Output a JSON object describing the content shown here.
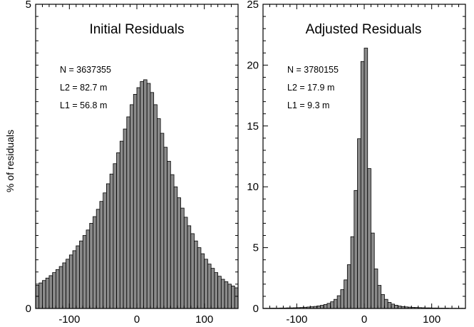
{
  "figure": {
    "ylabel": "% of residuals"
  },
  "chart_data": [
    {
      "type": "bar",
      "title": "Initial Residuals",
      "xlabel": "",
      "ylabel": "% of residuals",
      "xlim": [
        -150,
        150
      ],
      "ylim": [
        0,
        5
      ],
      "bin_width": 5,
      "x_ticks": [
        -100,
        0,
        100
      ],
      "x_tick_labels": [
        "-100",
        "0",
        "100"
      ],
      "y_ticks": [
        0,
        5
      ],
      "y_tick_labels": [
        "0",
        "5"
      ],
      "stats": [
        "N = 3637355",
        "L2 = 82.7 m",
        "L1 = 56.8 m"
      ],
      "bins_start": [
        -150,
        -145,
        -140,
        -135,
        -130,
        -125,
        -120,
        -115,
        -110,
        -105,
        -100,
        -95,
        -90,
        -85,
        -80,
        -75,
        -70,
        -65,
        -60,
        -55,
        -50,
        -45,
        -40,
        -35,
        -30,
        -25,
        -20,
        -15,
        -10,
        -5,
        0,
        5,
        10,
        15,
        20,
        25,
        30,
        35,
        40,
        45,
        50,
        55,
        60,
        65,
        70,
        75,
        80,
        85,
        90,
        95,
        100,
        105,
        110,
        115,
        120,
        125,
        130,
        135,
        140,
        145
      ],
      "values": [
        0.38,
        0.42,
        0.46,
        0.5,
        0.54,
        0.59,
        0.64,
        0.69,
        0.75,
        0.81,
        0.88,
        0.95,
        1.03,
        1.11,
        1.2,
        1.29,
        1.4,
        1.51,
        1.63,
        1.76,
        1.9,
        2.05,
        2.21,
        2.38,
        2.56,
        2.75,
        2.95,
        3.15,
        3.35,
        3.52,
        3.63,
        3.73,
        3.76,
        3.7,
        3.55,
        3.35,
        3.12,
        2.88,
        2.65,
        2.42,
        2.2,
        2.0,
        1.82,
        1.65,
        1.5,
        1.36,
        1.23,
        1.11,
        1.0,
        0.9,
        0.81,
        0.73,
        0.66,
        0.59,
        0.53,
        0.48,
        0.44,
        0.4,
        0.37,
        0.34
      ]
    },
    {
      "type": "bar",
      "title": "Adjusted Residuals",
      "xlabel": "",
      "ylabel": "",
      "xlim": [
        -150,
        150
      ],
      "ylim": [
        0,
        25
      ],
      "bin_width": 5,
      "x_ticks": [
        -100,
        0,
        100
      ],
      "x_tick_labels": [
        "-100",
        "0",
        "100"
      ],
      "y_ticks": [
        0,
        5,
        10,
        15,
        20,
        25
      ],
      "y_tick_labels": [
        "0",
        "5",
        "10",
        "15",
        "20",
        "25"
      ],
      "stats": [
        "N = 3780155",
        "L2 = 17.9 m",
        "L1 = 9.3 m"
      ],
      "bins_start": [
        -150,
        -145,
        -140,
        -135,
        -130,
        -125,
        -120,
        -115,
        -110,
        -105,
        -100,
        -95,
        -90,
        -85,
        -80,
        -75,
        -70,
        -65,
        -60,
        -55,
        -50,
        -45,
        -40,
        -35,
        -30,
        -25,
        -20,
        -15,
        -10,
        -5,
        0,
        5,
        10,
        15,
        20,
        25,
        30,
        35,
        40,
        45,
        50,
        55,
        60,
        65,
        70,
        75,
        80,
        85,
        90,
        95,
        100,
        105,
        110,
        115,
        120,
        125,
        130,
        135,
        140,
        145
      ],
      "values": [
        0.02,
        0.02,
        0.03,
        0.03,
        0.03,
        0.04,
        0.04,
        0.05,
        0.05,
        0.06,
        0.07,
        0.08,
        0.1,
        0.12,
        0.14,
        0.17,
        0.21,
        0.26,
        0.33,
        0.42,
        0.55,
        0.75,
        1.05,
        1.55,
        2.35,
        3.6,
        5.9,
        9.7,
        13.95,
        20.3,
        21.4,
        11.5,
        6.2,
        3.25,
        1.9,
        1.15,
        0.75,
        0.5,
        0.36,
        0.27,
        0.2,
        0.16,
        0.13,
        0.11,
        0.09,
        0.08,
        0.07,
        0.06,
        0.05,
        0.05,
        0.04,
        0.04,
        0.03,
        0.03,
        0.03,
        0.02,
        0.02,
        0.02,
        0.02,
        0.02
      ]
    }
  ]
}
